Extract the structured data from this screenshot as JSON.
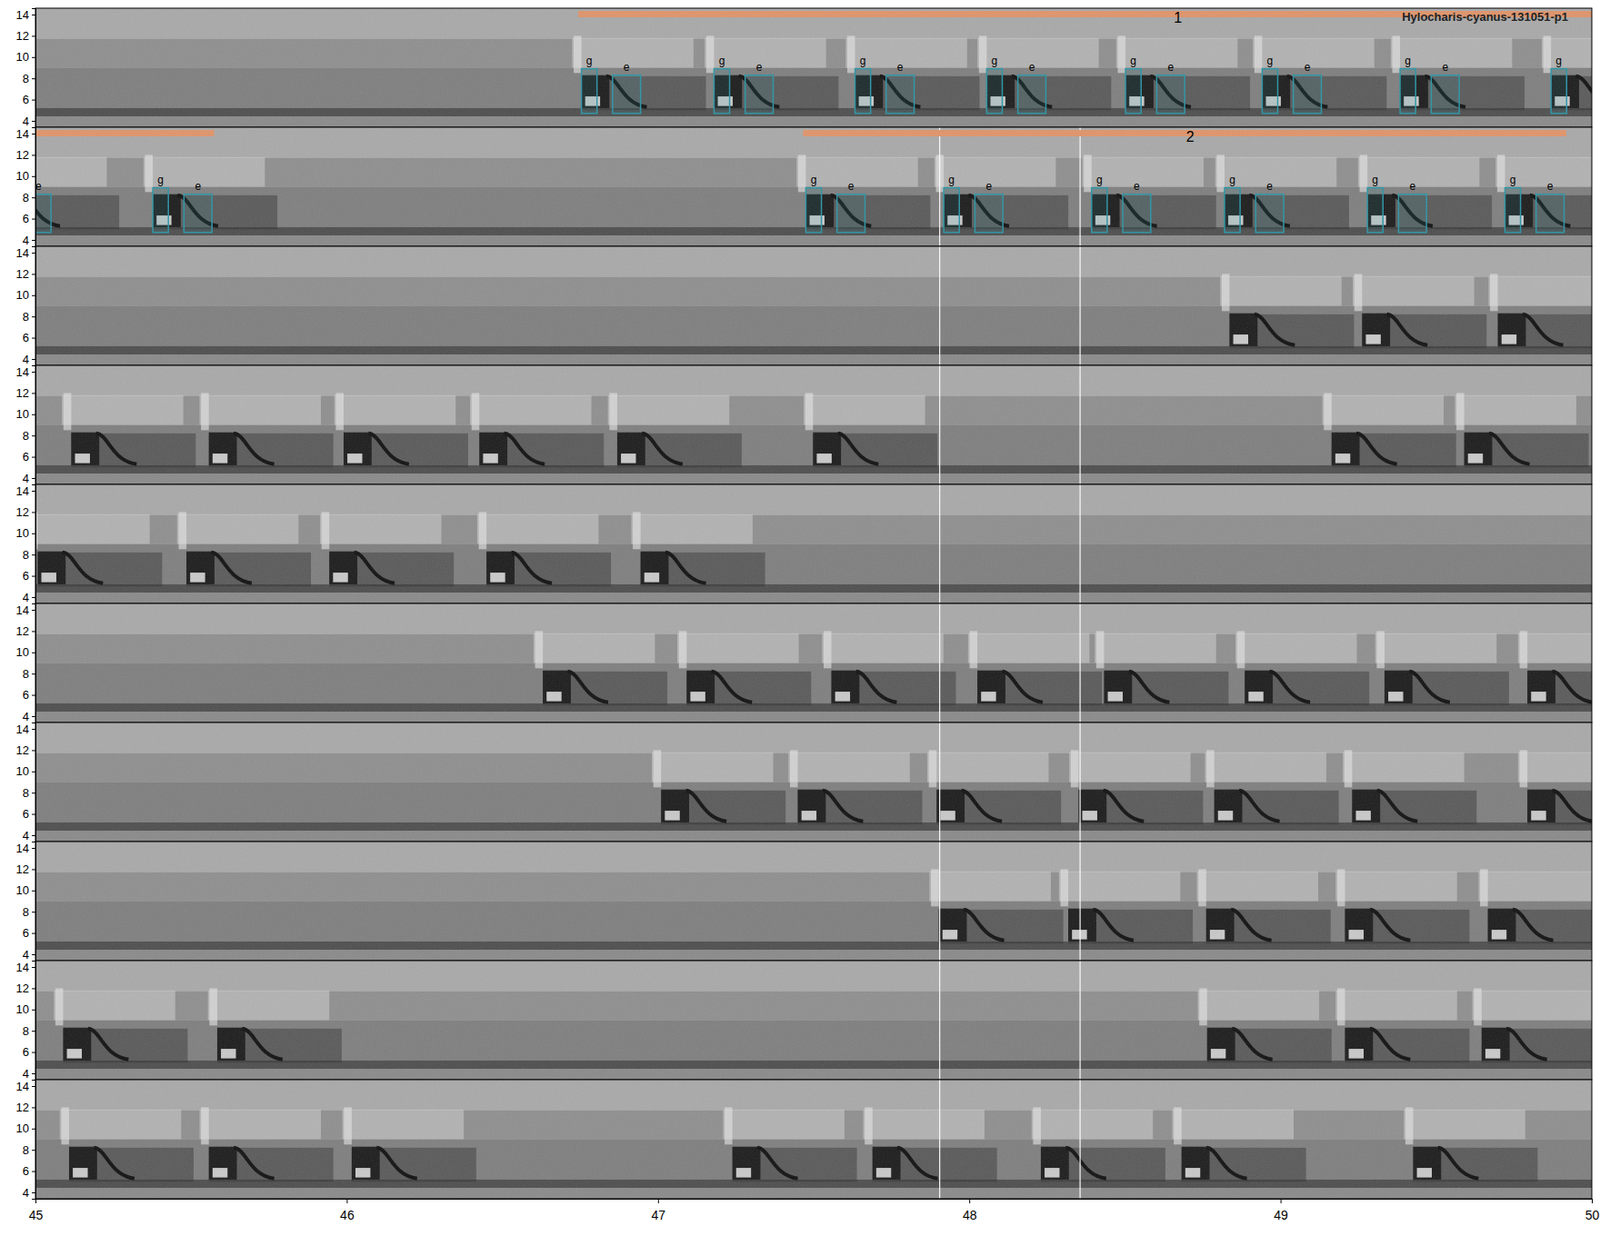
{
  "chart_data": {
    "type": "spectrogram",
    "title": "Hylocharis-cyanus-131051-p1",
    "xlim": [
      45,
      50
    ],
    "xticks": [
      45,
      46,
      47,
      48,
      49,
      50
    ],
    "ylim": [
      3.4,
      14.6
    ],
    "yticks": [
      4,
      6,
      8,
      10,
      12,
      14
    ],
    "color": "#e0946a",
    "vlines": [
      47.905,
      48.356
    ],
    "rows": [
      {
        "notes": [
          46.754,
          47.18,
          47.633,
          48.056,
          48.502,
          48.941,
          49.384,
          49.869
        ],
        "bouts": [
          {
            "x": [
              46.744,
              50
            ],
            "label": "1",
            "label_x": 48.67
          }
        ],
        "syllables": [
          {
            "label": "g",
            "x": [
              46.754,
              46.804
            ],
            "y": [
              4.7,
              8.9
            ]
          },
          {
            "label": "e",
            "x": [
              46.854,
              46.944
            ],
            "y": [
              4.7,
              8.3
            ]
          },
          {
            "label": "g",
            "x": [
              47.18,
              47.23
            ],
            "y": [
              4.7,
              8.9
            ]
          },
          {
            "label": "e",
            "x": [
              47.28,
              47.37
            ],
            "y": [
              4.7,
              8.3
            ]
          },
          {
            "label": "g",
            "x": [
              47.633,
              47.683
            ],
            "y": [
              4.7,
              8.9
            ]
          },
          {
            "label": "e",
            "x": [
              47.733,
              47.823
            ],
            "y": [
              4.7,
              8.3
            ]
          },
          {
            "label": "g",
            "x": [
              48.056,
              48.106
            ],
            "y": [
              4.7,
              8.9
            ]
          },
          {
            "label": "e",
            "x": [
              48.156,
              48.246
            ],
            "y": [
              4.7,
              8.3
            ]
          },
          {
            "label": "g",
            "x": [
              48.502,
              48.552
            ],
            "y": [
              4.7,
              8.9
            ]
          },
          {
            "label": "e",
            "x": [
              48.602,
              48.692
            ],
            "y": [
              4.7,
              8.3
            ]
          },
          {
            "label": "g",
            "x": [
              48.941,
              48.991
            ],
            "y": [
              4.7,
              8.9
            ]
          },
          {
            "label": "e",
            "x": [
              49.041,
              49.131
            ],
            "y": [
              4.7,
              8.3
            ]
          },
          {
            "label": "g",
            "x": [
              49.384,
              49.434
            ],
            "y": [
              4.7,
              8.9
            ]
          },
          {
            "label": "e",
            "x": [
              49.484,
              49.574
            ],
            "y": [
              4.7,
              8.3
            ]
          },
          {
            "label": "g",
            "x": [
              49.869,
              49.919
            ],
            "y": [
              4.7,
              8.9
            ]
          }
        ]
      },
      {
        "notes": [
          44.869,
          45.377,
          47.475,
          47.918,
          48.393,
          48.82,
          49.279,
          49.721
        ],
        "bouts": [
          {
            "x": [
              45,
              45.574
            ]
          },
          {
            "x": [
              47.466,
              49.918
            ],
            "label": "2",
            "label_x": 48.71
          }
        ],
        "syllables": [
          {
            "label": "e",
            "x": [
              44.97,
              45.05
            ],
            "y": [
              4.7,
              8.3
            ]
          },
          {
            "label": "g",
            "x": [
              45.377,
              45.427
            ],
            "y": [
              4.7,
              8.9
            ]
          },
          {
            "label": "e",
            "x": [
              45.477,
              45.567
            ],
            "y": [
              4.7,
              8.3
            ]
          },
          {
            "label": "g",
            "x": [
              47.475,
              47.525
            ],
            "y": [
              4.7,
              8.9
            ]
          },
          {
            "label": "e",
            "x": [
              47.575,
              47.665
            ],
            "y": [
              4.7,
              8.3
            ]
          },
          {
            "label": "g",
            "x": [
              47.918,
              47.968
            ],
            "y": [
              4.7,
              8.9
            ]
          },
          {
            "label": "e",
            "x": [
              48.018,
              48.108
            ],
            "y": [
              4.7,
              8.3
            ]
          },
          {
            "label": "g",
            "x": [
              48.393,
              48.443
            ],
            "y": [
              4.7,
              8.9
            ]
          },
          {
            "label": "e",
            "x": [
              48.493,
              48.583
            ],
            "y": [
              4.7,
              8.3
            ]
          },
          {
            "label": "g",
            "x": [
              48.82,
              48.87
            ],
            "y": [
              4.7,
              8.9
            ]
          },
          {
            "label": "e",
            "x": [
              48.92,
              49.01
            ],
            "y": [
              4.7,
              8.3
            ]
          },
          {
            "label": "g",
            "x": [
              49.279,
              49.329
            ],
            "y": [
              4.7,
              8.9
            ]
          },
          {
            "label": "e",
            "x": [
              49.379,
              49.469
            ],
            "y": [
              4.7,
              8.3
            ]
          },
          {
            "label": "g",
            "x": [
              49.721,
              49.771
            ],
            "y": [
              4.7,
              8.9
            ]
          },
          {
            "label": "e",
            "x": [
              49.821,
              49.911
            ],
            "y": [
              4.7,
              8.3
            ]
          }
        ]
      },
      {
        "notes": [
          48.836,
          49.262,
          49.698
        ]
      },
      {
        "notes": [
          45.115,
          45.557,
          45.99,
          46.426,
          46.869,
          47.498,
          49.164,
          49.59
        ]
      },
      {
        "notes": [
          45.007,
          45.485,
          45.944,
          46.449,
          46.944
        ]
      },
      {
        "notes": [
          46.63,
          47.092,
          47.557,
          48.026,
          48.433,
          48.885,
          49.334,
          49.793
        ]
      },
      {
        "notes": [
          47.01,
          47.449,
          47.895,
          48.351,
          48.787,
          49.23,
          49.793
        ]
      },
      {
        "notes": [
          47.902,
          48.318,
          48.761,
          49.207,
          49.666
        ]
      },
      {
        "notes": [
          45.089,
          45.584,
          48.764,
          49.207,
          49.646
        ]
      },
      {
        "notes": [
          45.108,
          45.557,
          46.016,
          47.239,
          47.689,
          48.23,
          48.682,
          49.426
        ]
      }
    ]
  }
}
